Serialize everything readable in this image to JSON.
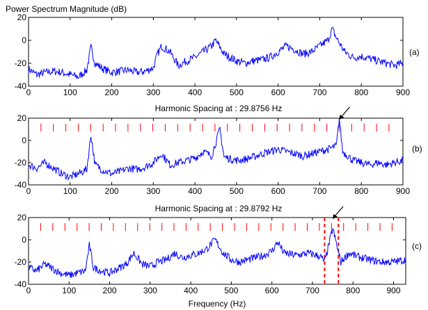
{
  "figure_title": "Power Spectrum Magnitude (dB)",
  "chart_data": [
    {
      "type": "line",
      "panel_label": "(a)",
      "title": "",
      "xlabel": "",
      "ylabel": "",
      "xlim": [
        0,
        900
      ],
      "ylim": [
        -40,
        20
      ],
      "xticks": [
        0,
        100,
        200,
        300,
        400,
        500,
        600,
        700,
        800,
        900
      ],
      "yticks": [
        -40,
        -20,
        0,
        20
      ],
      "series_color": "#0000ff",
      "series": [
        {
          "x": [
            0,
            20,
            40,
            60,
            80,
            100,
            120,
            140,
            150,
            160,
            180,
            200,
            220,
            240,
            260,
            280,
            300,
            310,
            320,
            340,
            360,
            380,
            400,
            420,
            440,
            450,
            455,
            470,
            500,
            520,
            540,
            560,
            580,
            600,
            620,
            640,
            660,
            680,
            700,
            720,
            730,
            740,
            760,
            780,
            800,
            820,
            840,
            860,
            880,
            900
          ],
          "y": [
            -25,
            -30,
            -28,
            -27,
            -28,
            -30,
            -32,
            -26,
            -6,
            -20,
            -25,
            -28,
            -27,
            -26,
            -28,
            -27,
            -24,
            -12,
            -5,
            -10,
            -22,
            -18,
            -15,
            -10,
            -5,
            0,
            -3,
            -12,
            -18,
            -20,
            -18,
            -17,
            -15,
            -10,
            -5,
            -8,
            -12,
            -10,
            -5,
            0,
            10,
            2,
            -10,
            -15,
            -14,
            -16,
            -18,
            -20,
            -22,
            -20
          ]
        }
      ]
    },
    {
      "type": "line",
      "panel_label": "(b)",
      "title": "Harmonic Spacing at : 29.8756 Hz",
      "xlabel": "",
      "ylabel": "",
      "xlim": [
        0,
        900
      ],
      "ylim": [
        -40,
        20
      ],
      "xticks": [
        0,
        100,
        200,
        300,
        400,
        500,
        600,
        700,
        800,
        900
      ],
      "yticks": [
        -40,
        -20,
        0,
        20
      ],
      "series_color": "#0000ff",
      "harmonic_spacing": 29.8756,
      "harmonic_marker_color": "#ff0000",
      "arrow_at_x": 747,
      "series": [
        {
          "x": [
            0,
            20,
            40,
            60,
            80,
            100,
            120,
            140,
            150,
            160,
            180,
            200,
            220,
            240,
            260,
            280,
            300,
            320,
            340,
            360,
            380,
            400,
            420,
            440,
            460,
            470,
            500,
            520,
            540,
            560,
            580,
            600,
            620,
            640,
            660,
            680,
            700,
            720,
            740,
            747,
            755,
            780,
            800,
            820,
            840,
            860,
            880,
            900
          ],
          "y": [
            -22,
            -25,
            -20,
            -25,
            -30,
            -33,
            -30,
            -26,
            5,
            -22,
            -27,
            -30,
            -28,
            -25,
            -26,
            -24,
            -20,
            -12,
            -22,
            -20,
            -18,
            -16,
            -10,
            -14,
            10,
            -15,
            -18,
            -17,
            -15,
            -12,
            -10,
            -8,
            -10,
            -12,
            -14,
            -12,
            -10,
            -8,
            -5,
            20,
            -10,
            -18,
            -20,
            -22,
            -20,
            -22,
            -20,
            -18
          ]
        }
      ]
    },
    {
      "type": "line",
      "panel_label": "(c)",
      "title": "Harmonic Spacing at : 29.8792 Hz",
      "xlabel": "Frequency (Hz)",
      "ylabel": "",
      "xlim": [
        0,
        930
      ],
      "ylim": [
        -40,
        20
      ],
      "xticks": [
        0,
        100,
        200,
        300,
        400,
        500,
        600,
        700,
        800,
        900
      ],
      "yticks": [
        -40,
        -20,
        0,
        20
      ],
      "series_color": "#0000ff",
      "harmonic_spacing": 29.8792,
      "harmonic_marker_color": "#ff0000",
      "arrow_at_x": 750,
      "window_lines": [
        730,
        764
      ],
      "series": [
        {
          "x": [
            0,
            20,
            40,
            60,
            80,
            100,
            120,
            140,
            150,
            160,
            180,
            200,
            210,
            220,
            240,
            260,
            280,
            300,
            320,
            340,
            360,
            380,
            400,
            420,
            440,
            460,
            480,
            500,
            520,
            540,
            560,
            580,
            600,
            615,
            630,
            660,
            690,
            720,
            730,
            740,
            750,
            760,
            770,
            790,
            810,
            840,
            870,
            900,
            930
          ],
          "y": [
            -25,
            -28,
            -22,
            -26,
            -30,
            -32,
            -30,
            -28,
            -5,
            -25,
            -28,
            -30,
            -28,
            -26,
            -22,
            -12,
            -22,
            -24,
            -20,
            -18,
            -12,
            -16,
            -14,
            -12,
            -8,
            0,
            -12,
            -18,
            -20,
            -18,
            -16,
            -14,
            -10,
            -2,
            -12,
            -14,
            -12,
            -15,
            -20,
            -5,
            10,
            -5,
            -20,
            -12,
            -15,
            -18,
            -20,
            -20,
            -18
          ]
        }
      ]
    }
  ]
}
